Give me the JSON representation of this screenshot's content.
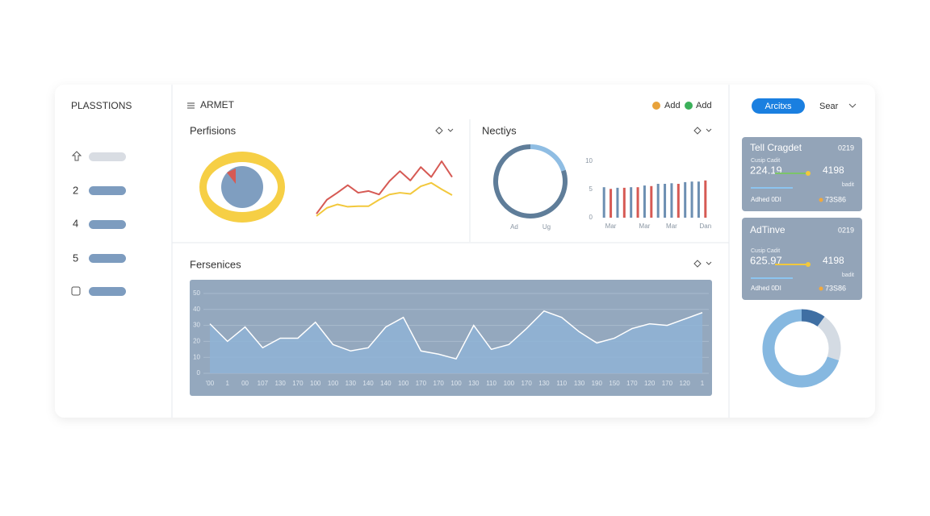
{
  "sidebar": {
    "title": "PLASSTIONS",
    "items": [
      "2",
      "4",
      "5"
    ]
  },
  "header": {
    "title": "ARMET",
    "actions": [
      "Add",
      "Add"
    ]
  },
  "toolbar": {
    "button": "Arcitxs",
    "search": "Sear"
  },
  "panel_titles": [
    "Perfisions",
    "Nectiys",
    "Fersenices"
  ],
  "cards": [
    {
      "title": "Tell Cragdet",
      "code": "0219",
      "caption": "Cusip Cadit",
      "value": "224.19",
      "secondary": "4198",
      "note": "badit",
      "footer": "Adhed 0DI",
      "footer_value": "73S86"
    },
    {
      "title": "AdTinve",
      "code": "0219",
      "caption": "Cusip Cadit",
      "value": "625.97",
      "secondary": "4198",
      "note": "badit",
      "footer": "Adhed 0DI",
      "footer_value": "73S86"
    }
  ],
  "chart_data": [
    {
      "type": "line",
      "series": [
        {
          "color": "#d65a54",
          "values": [
            7,
            31,
            43,
            56,
            43,
            46,
            40,
            63,
            80,
            64,
            87,
            70,
            97,
            70
          ]
        },
        {
          "color": "#f2c83c",
          "values": [
            3,
            17,
            23,
            19,
            20,
            20,
            31,
            40,
            43,
            41,
            54,
            60,
            49,
            39
          ]
        }
      ]
    },
    {
      "type": "pie",
      "categories": [
        "Ad",
        "Ug"
      ],
      "values": [
        20,
        80
      ],
      "colors": [
        "#8fbde3",
        "#5f7d99"
      ]
    },
    {
      "type": "bar",
      "categories": [
        null,
        "Mar",
        null,
        null,
        null,
        null,
        "Mar",
        null,
        null,
        null,
        "Mar",
        null,
        null,
        null,
        null,
        "Dan"
      ],
      "values": [
        5.4,
        5.1,
        5.3,
        5.3,
        5.4,
        5.4,
        5.7,
        5.6,
        6.0,
        6.0,
        6.1,
        6.0,
        6.3,
        6.4,
        6.4,
        6.6
      ],
      "colors": [
        "#6d8fb2",
        "#d65a54",
        "#6d8fb2",
        "#d65a54",
        "#6d8fb2",
        "#d65a54",
        "#6d8fb2",
        "#d65a54",
        "#6d8fb2",
        "#6d8fb2",
        "#6d8fb2",
        "#d65a54",
        "#6d8fb2",
        "#6d8fb2",
        "#6d8fb2",
        "#d65a54"
      ],
      "ylim": [
        0,
        10
      ],
      "yticks": [
        0,
        5,
        10
      ]
    },
    {
      "type": "area",
      "color": "#ffffff",
      "fill": "#8fb3d6",
      "categories": [
        "'00",
        "1",
        "00",
        "107",
        "130",
        "170",
        "100",
        "100",
        "130",
        "140",
        "140",
        "100",
        "170",
        "170",
        "100",
        "130",
        "110",
        "100",
        "170",
        "130",
        "110",
        "130",
        "190",
        "150",
        "170",
        "120",
        "170",
        "120",
        "1"
      ],
      "values": [
        31,
        20,
        29,
        16,
        22,
        22,
        32,
        18,
        14,
        16,
        29,
        35,
        14,
        12,
        9,
        30,
        15,
        18,
        28,
        39,
        35,
        26,
        19,
        22,
        28,
        31,
        30,
        34,
        38
      ],
      "ylim": [
        0,
        50
      ],
      "yticks": [
        0,
        10,
        20,
        30,
        40,
        50
      ],
      "grid": true
    },
    {
      "type": "pie",
      "values": [
        10,
        20,
        70
      ],
      "colors": [
        "#3f6fa3",
        "#d4dbe3",
        "#86b8e0"
      ]
    }
  ]
}
